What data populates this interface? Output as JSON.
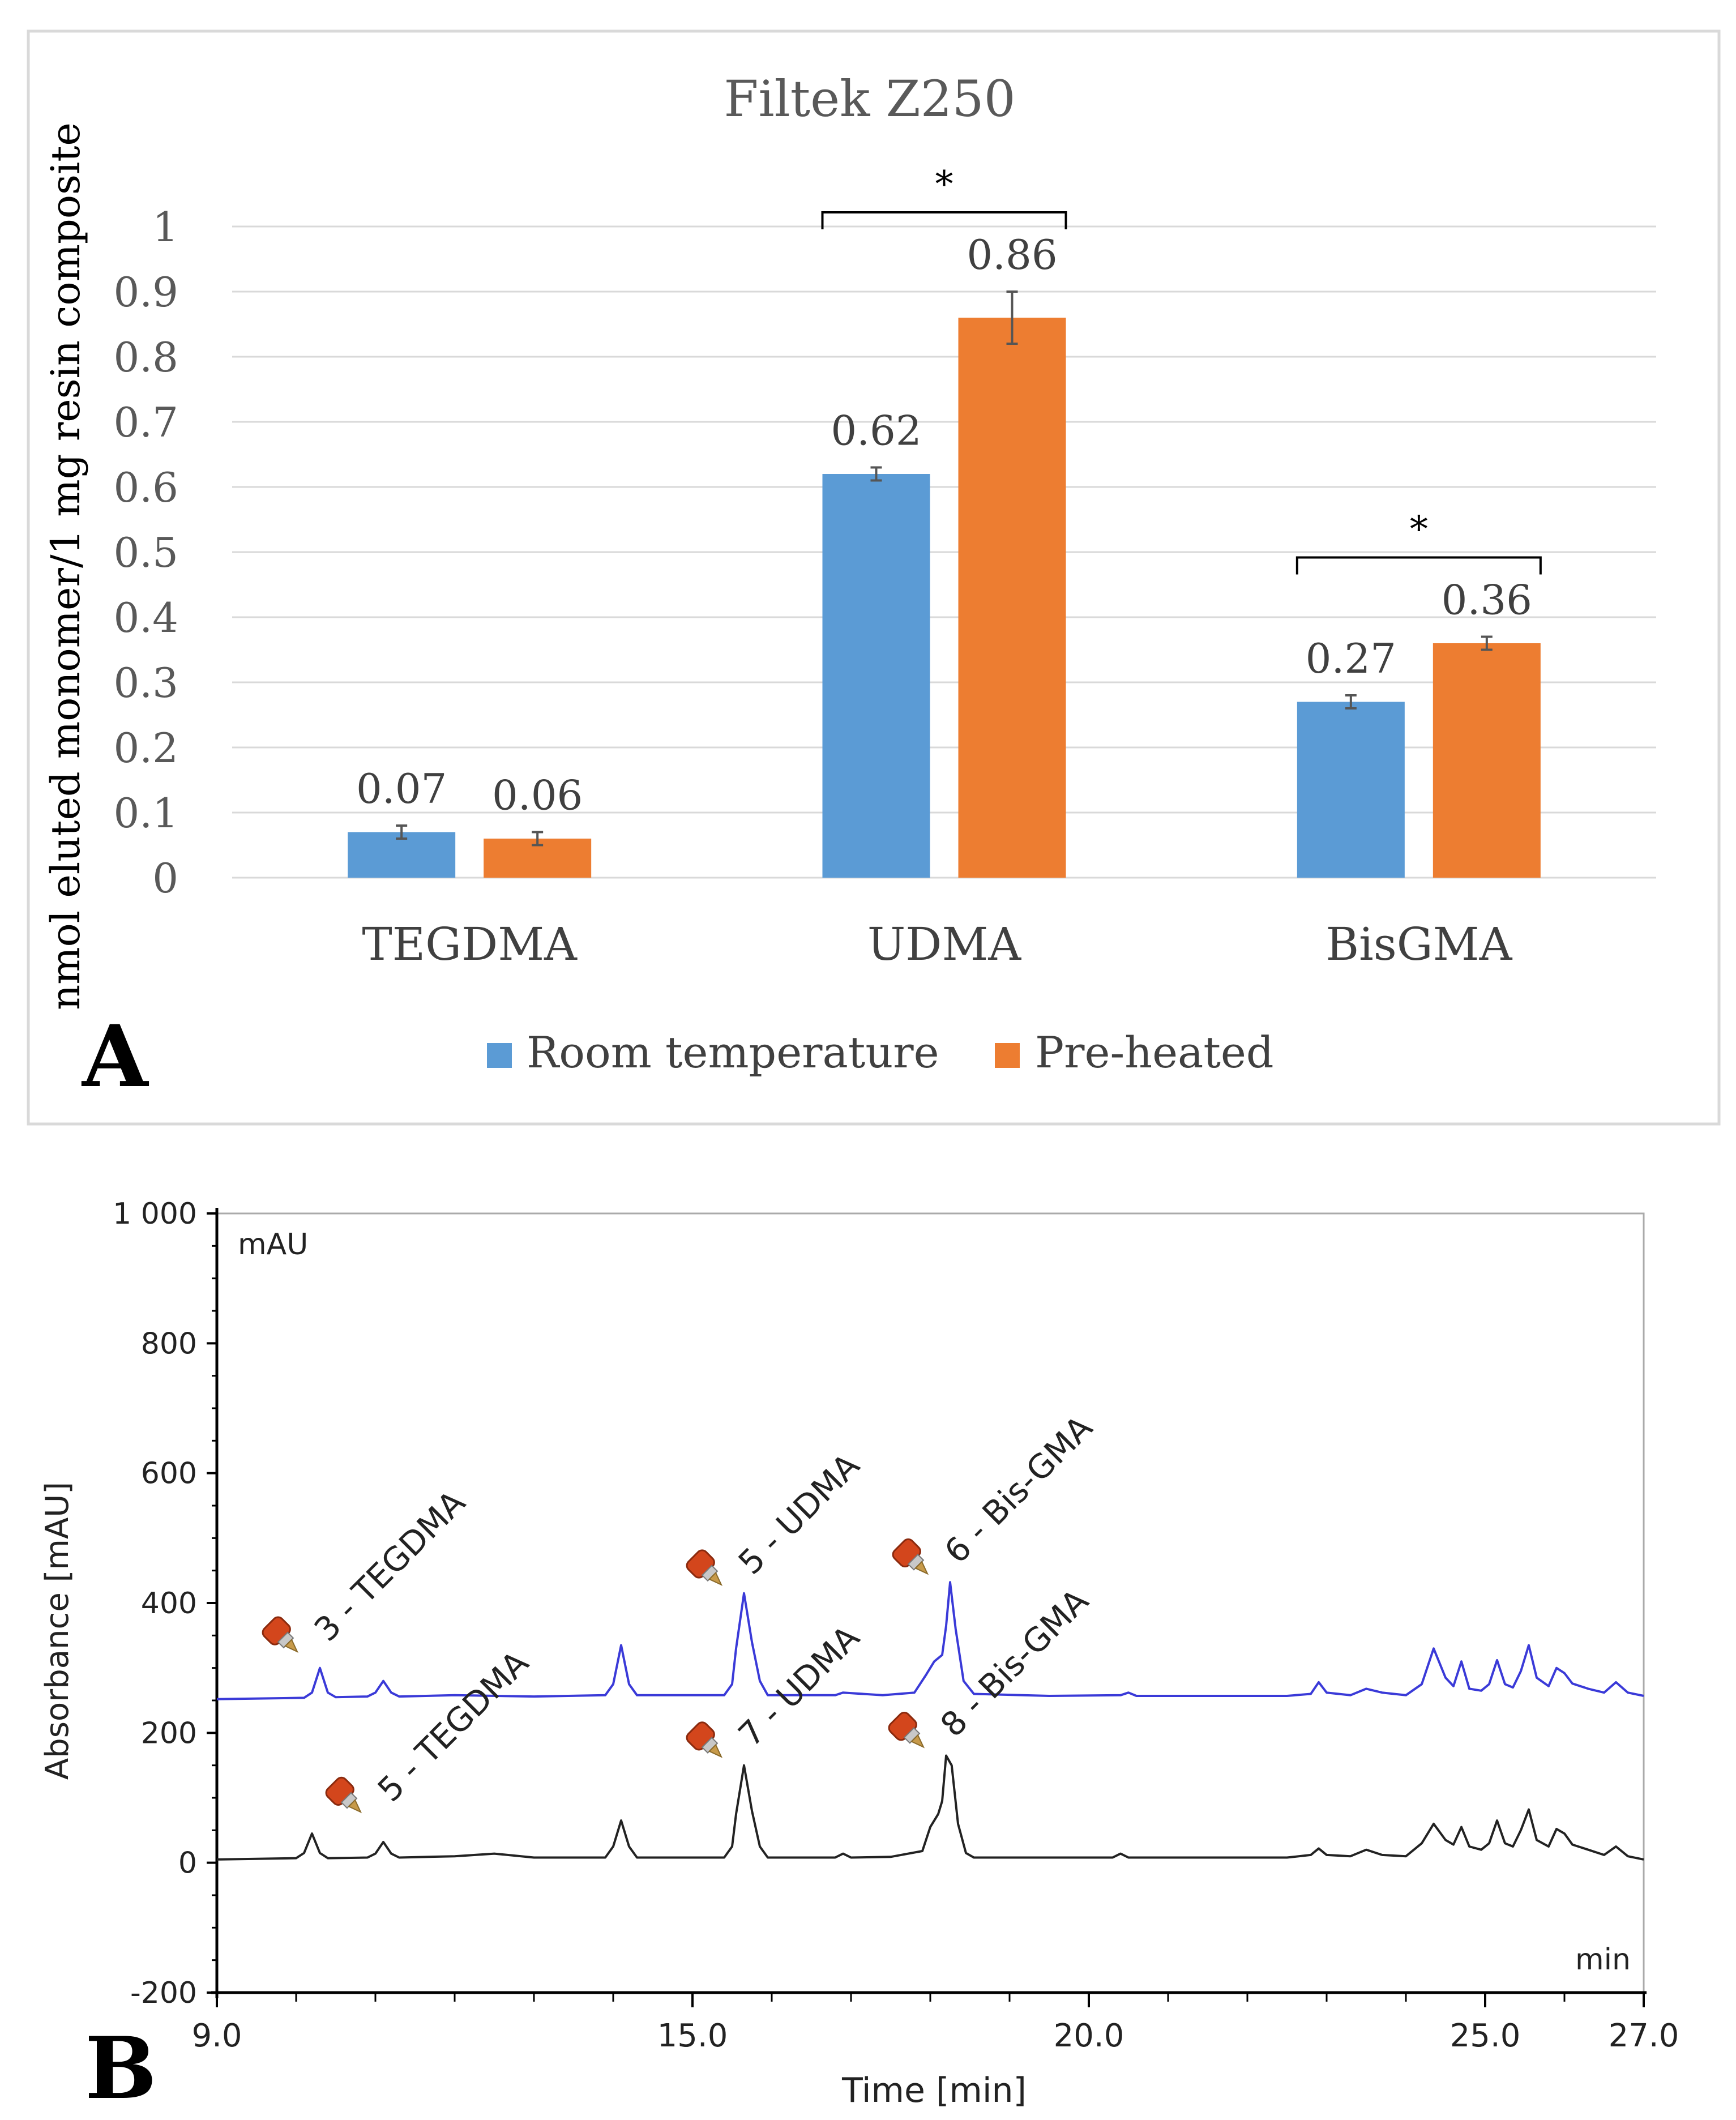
{
  "panel_a": {
    "label": "A",
    "chart_data": {
      "type": "bar",
      "title": "Filtek Z250",
      "ylabel": "nmol eluted monomer/1 mg resin composite",
      "xlabel": "",
      "ylim": [
        0,
        1
      ],
      "yticks": [
        "0",
        "0.1",
        "0.2",
        "0.3",
        "0.4",
        "0.5",
        "0.6",
        "0.7",
        "0.8",
        "0.9",
        "1"
      ],
      "categories": [
        "TEGDMA",
        "UDMA",
        "BisGMA"
      ],
      "series": [
        {
          "name": "Room temperature",
          "color": "#5b9bd5",
          "values": [
            0.07,
            0.62,
            0.27
          ],
          "errors": [
            0.01,
            0.01,
            0.01
          ],
          "labels": [
            "0.07",
            "0.62",
            "0.27"
          ]
        },
        {
          "name": "Pre-heated",
          "color": "#ed7d31",
          "values": [
            0.06,
            0.86,
            0.36
          ],
          "errors": [
            0.01,
            0.04,
            0.01
          ],
          "labels": [
            "0.06",
            "0.86",
            "0.36"
          ]
        }
      ],
      "significance": [
        {
          "category": "UDMA",
          "marker": "*"
        },
        {
          "category": "BisGMA",
          "marker": "*"
        }
      ],
      "grid": true,
      "legend_position": "bottom"
    }
  },
  "panel_b": {
    "label": "B",
    "chart_data": {
      "type": "line",
      "xlabel": "Time [min]",
      "ylabel": "Absorbance [mAU]",
      "unit_y": "mAU",
      "unit_x": "min",
      "xlim": [
        9.0,
        27.0
      ],
      "ylim": [
        -200,
        1000
      ],
      "xticks": [
        {
          "value": 9.0,
          "label": "9.0"
        },
        {
          "value": 15.0,
          "label": "15.0"
        },
        {
          "value": 20.0,
          "label": "20.0"
        },
        {
          "value": 25.0,
          "label": "25.0"
        },
        {
          "value": 27.0,
          "label": "27.0"
        }
      ],
      "yticks": [
        {
          "value": 1000,
          "label": "1 000"
        },
        {
          "value": 800,
          "label": "800"
        },
        {
          "value": 600,
          "label": "600"
        },
        {
          "value": 400,
          "label": "400"
        },
        {
          "value": 200,
          "label": "200"
        },
        {
          "value": 0,
          "label": "0"
        },
        {
          "value": -200,
          "label": "-200"
        }
      ],
      "series": [
        {
          "name": "upper trace",
          "color": "#3a3ad8",
          "baseline": 252,
          "points": [
            [
              9.0,
              252
            ],
            [
              10.1,
              254
            ],
            [
              10.2,
              262
            ],
            [
              10.3,
              300
            ],
            [
              10.4,
              262
            ],
            [
              10.5,
              255
            ],
            [
              10.9,
              256
            ],
            [
              11.0,
              262
            ],
            [
              11.1,
              280
            ],
            [
              11.2,
              262
            ],
            [
              11.3,
              256
            ],
            [
              12.0,
              258
            ],
            [
              13.0,
              256
            ],
            [
              13.9,
              258
            ],
            [
              14.0,
              275
            ],
            [
              14.1,
              335
            ],
            [
              14.2,
              275
            ],
            [
              14.3,
              258
            ],
            [
              15.4,
              258
            ],
            [
              15.5,
              275
            ],
            [
              15.55,
              330
            ],
            [
              15.65,
              415
            ],
            [
              15.75,
              340
            ],
            [
              15.85,
              280
            ],
            [
              15.95,
              258
            ],
            [
              16.8,
              258
            ],
            [
              16.9,
              262
            ],
            [
              17.4,
              258
            ],
            [
              17.8,
              262
            ],
            [
              17.95,
              290
            ],
            [
              18.05,
              310
            ],
            [
              18.15,
              320
            ],
            [
              18.2,
              365
            ],
            [
              18.25,
              432
            ],
            [
              18.32,
              360
            ],
            [
              18.42,
              280
            ],
            [
              18.55,
              260
            ],
            [
              19.5,
              257
            ],
            [
              20.4,
              258
            ],
            [
              20.5,
              262
            ],
            [
              20.6,
              257
            ],
            [
              22.5,
              257
            ],
            [
              22.8,
              260
            ],
            [
              22.9,
              278
            ],
            [
              23.0,
              262
            ],
            [
              23.3,
              258
            ],
            [
              23.5,
              268
            ],
            [
              23.7,
              262
            ],
            [
              24.0,
              258
            ],
            [
              24.2,
              275
            ],
            [
              24.35,
              330
            ],
            [
              24.5,
              285
            ],
            [
              24.6,
              272
            ],
            [
              24.7,
              310
            ],
            [
              24.8,
              268
            ],
            [
              24.95,
              265
            ],
            [
              25.05,
              275
            ],
            [
              25.15,
              312
            ],
            [
              25.25,
              275
            ],
            [
              25.35,
              270
            ],
            [
              25.45,
              295
            ],
            [
              25.55,
              335
            ],
            [
              25.65,
              285
            ],
            [
              25.8,
              272
            ],
            [
              25.9,
              300
            ],
            [
              26.0,
              292
            ],
            [
              26.1,
              276
            ],
            [
              26.3,
              268
            ],
            [
              26.5,
              262
            ],
            [
              26.65,
              278
            ],
            [
              26.8,
              262
            ],
            [
              27.0,
              257
            ]
          ],
          "peak_annotations": [
            {
              "label": "3 - TEGDMA",
              "time": 10.3
            },
            {
              "label": "5 - UDMA",
              "time": 15.65
            },
            {
              "label": "6 - Bis-GMA",
              "time": 18.25
            }
          ]
        },
        {
          "name": "lower trace",
          "color": "#222222",
          "baseline": 5,
          "points": [
            [
              9.0,
              5
            ],
            [
              10.0,
              7
            ],
            [
              10.1,
              15
            ],
            [
              10.2,
              45
            ],
            [
              10.3,
              15
            ],
            [
              10.4,
              7
            ],
            [
              10.9,
              8
            ],
            [
              11.0,
              14
            ],
            [
              11.1,
              32
            ],
            [
              11.2,
              14
            ],
            [
              11.3,
              8
            ],
            [
              12.0,
              10
            ],
            [
              12.5,
              14
            ],
            [
              13.0,
              8
            ],
            [
              13.9,
              8
            ],
            [
              14.0,
              25
            ],
            [
              14.1,
              65
            ],
            [
              14.2,
              25
            ],
            [
              14.3,
              8
            ],
            [
              15.4,
              8
            ],
            [
              15.5,
              25
            ],
            [
              15.55,
              75
            ],
            [
              15.65,
              150
            ],
            [
              15.75,
              80
            ],
            [
              15.85,
              25
            ],
            [
              15.95,
              8
            ],
            [
              16.8,
              8
            ],
            [
              16.9,
              14
            ],
            [
              17.0,
              8
            ],
            [
              17.5,
              9
            ],
            [
              17.9,
              18
            ],
            [
              18.0,
              55
            ],
            [
              18.1,
              75
            ],
            [
              18.15,
              95
            ],
            [
              18.2,
              165
            ],
            [
              18.27,
              150
            ],
            [
              18.35,
              60
            ],
            [
              18.45,
              15
            ],
            [
              18.55,
              8
            ],
            [
              19.5,
              8
            ],
            [
              20.3,
              8
            ],
            [
              20.4,
              14
            ],
            [
              20.5,
              8
            ],
            [
              22.5,
              8
            ],
            [
              22.8,
              12
            ],
            [
              22.9,
              22
            ],
            [
              23.0,
              12
            ],
            [
              23.3,
              10
            ],
            [
              23.5,
              20
            ],
            [
              23.7,
              12
            ],
            [
              24.0,
              10
            ],
            [
              24.2,
              30
            ],
            [
              24.35,
              60
            ],
            [
              24.5,
              35
            ],
            [
              24.6,
              28
            ],
            [
              24.7,
              55
            ],
            [
              24.8,
              25
            ],
            [
              24.95,
              20
            ],
            [
              25.05,
              30
            ],
            [
              25.15,
              65
            ],
            [
              25.25,
              30
            ],
            [
              25.35,
              25
            ],
            [
              25.45,
              50
            ],
            [
              25.55,
              82
            ],
            [
              25.65,
              35
            ],
            [
              25.8,
              25
            ],
            [
              25.9,
              52
            ],
            [
              26.0,
              45
            ],
            [
              26.1,
              28
            ],
            [
              26.3,
              20
            ],
            [
              26.5,
              12
            ],
            [
              26.65,
              25
            ],
            [
              26.8,
              10
            ],
            [
              27.0,
              5
            ]
          ],
          "peak_annotations": [
            {
              "label": "5 - TEGDMA",
              "time": 11.1
            },
            {
              "label": "7 - UDMA",
              "time": 15.65
            },
            {
              "label": "8 - Bis-GMA",
              "time": 18.2
            }
          ]
        }
      ]
    }
  }
}
